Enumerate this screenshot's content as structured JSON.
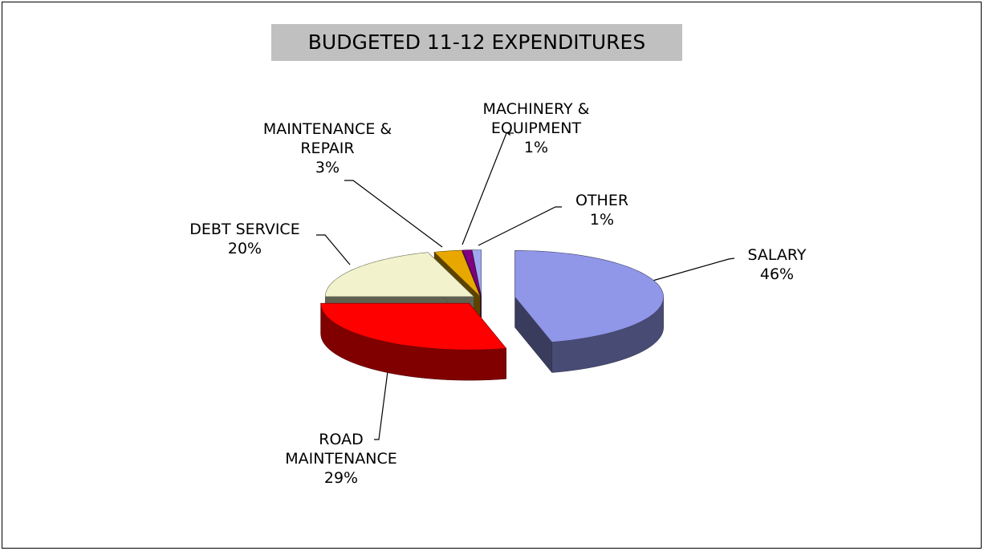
{
  "chart_data": {
    "type": "pie3d",
    "title": "BUDGETED 11-12 EXPENDITURES",
    "categories": [
      "SALARY",
      "ROAD\nMAINTENANCE",
      "DEBT SERVICE",
      "MAINTENANCE &\nREPAIR",
      "MACHINERY &\nEQUIPMENT",
      "OTHER"
    ],
    "values": [
      46,
      29,
      20,
      3,
      1,
      1
    ],
    "value_labels": [
      "46%",
      "29%",
      "20%",
      "3%",
      "1%",
      "1%"
    ],
    "colors": [
      "#9096e8",
      "#ff0000",
      "#f2f2cc",
      "#e8a800",
      "#800080",
      "#a0a8f0"
    ]
  }
}
